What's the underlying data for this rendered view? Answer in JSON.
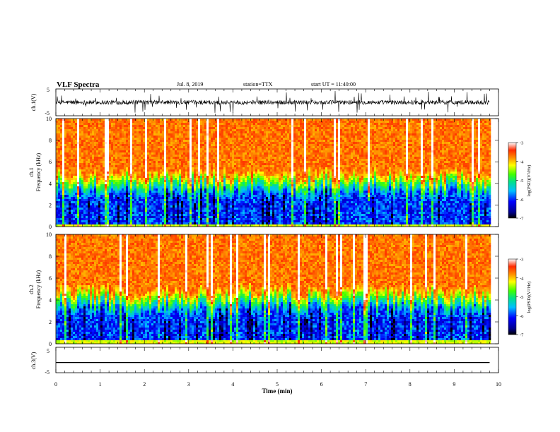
{
  "header": {
    "title": "VLF Spectra",
    "date": "Jul. 8, 2019",
    "station": "station=TTX",
    "start": "start UT = 11:40:00"
  },
  "chart_data": [
    {
      "type": "line",
      "panel": "ch1-waveform",
      "ylabel": "ch.1(V)",
      "ylim": [
        -5,
        5
      ],
      "yticks": [
        "5",
        "-5"
      ],
      "xlim": [
        0,
        10
      ],
      "description_values": {
        "baseline": 0,
        "typical_noise_amplitude": 1.0,
        "spike_max": 5
      }
    },
    {
      "type": "heatmap",
      "panel": "ch1-spectrogram",
      "ylabel_line1": "ch.1",
      "ylabel_line2": "Frequency (kHz)",
      "ylim": [
        0,
        10
      ],
      "yticks": [
        "0",
        "2",
        "4",
        "6",
        "8",
        "10"
      ],
      "xlim": [
        0,
        9.8
      ],
      "colorbar": {
        "label": "log(PSD)(V²/Hz)",
        "range": [
          -7,
          -3
        ],
        "ticks": [
          "-7",
          "-6",
          "-5",
          "-4",
          "-3"
        ]
      },
      "profile": {
        "low_band_top_khz": 3.0,
        "transition_khz": 5.0,
        "low_level": -6.0,
        "high_level": -3.7
      }
    },
    {
      "type": "heatmap",
      "panel": "ch2-spectrogram",
      "ylabel_line1": "ch.2",
      "ylabel_line2": "Frequency (kHz)",
      "ylim": [
        0,
        10
      ],
      "yticks": [
        "0",
        "2",
        "4",
        "6",
        "8",
        "10"
      ],
      "xlim": [
        0,
        9.8
      ],
      "colorbar": {
        "label": "log(PSD)(V²/Hz)",
        "range": [
          -7,
          -3
        ],
        "ticks": [
          "-7",
          "-6",
          "-5",
          "-4",
          "-3"
        ]
      },
      "profile": {
        "low_band_top_khz": 3.0,
        "transition_khz": 5.0,
        "low_level": -6.0,
        "high_level": -3.7
      }
    },
    {
      "type": "line",
      "panel": "ch3-waveform",
      "ylabel": "ch.3(V)",
      "ylim": [
        -5,
        5
      ],
      "yticks": [
        "5",
        "-5"
      ],
      "xlim": [
        0,
        10
      ],
      "description_values": {
        "constant_level": -1
      }
    }
  ],
  "xaxis": {
    "label": "Time (min)",
    "ticks": [
      "0",
      "1",
      "2",
      "3",
      "4",
      "5",
      "6",
      "7",
      "8",
      "9",
      "10"
    ]
  }
}
